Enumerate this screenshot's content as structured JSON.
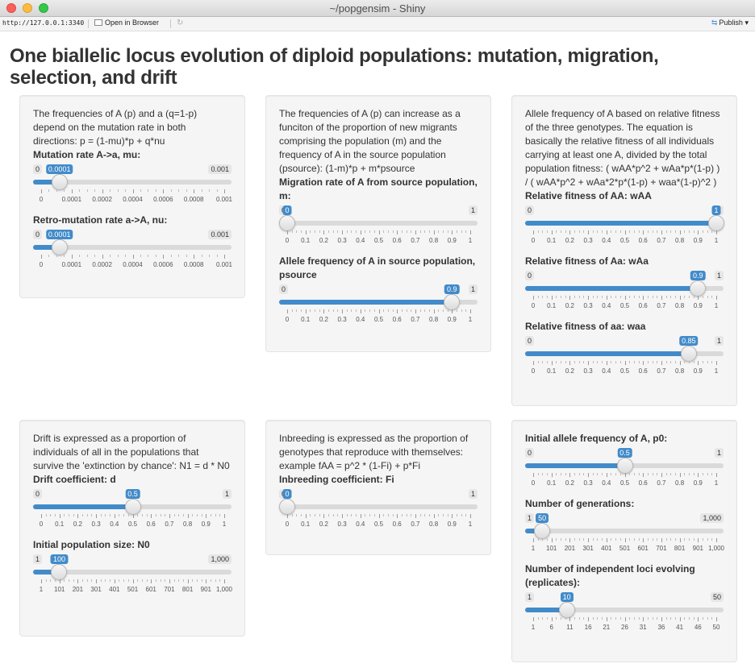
{
  "window": {
    "title": "~/popgensim - Shiny"
  },
  "toolbar": {
    "url": "http://127.0.0.1:3340",
    "open_in_browser": "Open in Browser",
    "publish": "Publish",
    "publish_caret": "▾",
    "refresh_icon": "↻",
    "publish_icon": "⇆"
  },
  "page": {
    "title": "One biallelic locus evolution of diploid populations: mutation, migration, selection, and drift"
  },
  "panels": [
    {
      "description": "The frequencies of A (p) and a (q=1-p) depend on the mutation rate in both directions: p = (1-mu)*p + q*nu",
      "sliders": [
        {
          "label": "Mutation rate A->a, mu:",
          "min": "0",
          "max": "0.001",
          "value": "0.0001",
          "fraction": 0.1,
          "grid": [
            "0",
            "0.0001",
            "0.0002",
            "0.0004",
            "0.0006",
            "0.0008",
            "0.001"
          ]
        },
        {
          "label": "Retro-mutation rate a->A, nu:",
          "min": "0",
          "max": "0.001",
          "value": "0.0001",
          "fraction": 0.1,
          "grid": [
            "0",
            "0.0001",
            "0.0002",
            "0.0004",
            "0.0006",
            "0.0008",
            "0.001"
          ]
        }
      ]
    },
    {
      "description": "The frequencies of A (p) can increase as a funciton of the proportion of new migrants comprising the population (m) and the frequency of A in the source population (psource): (1-m)*p + m*psource",
      "sliders": [
        {
          "label": "Migration rate of A from source population, m:",
          "min": "0",
          "max": "1",
          "value": "0",
          "fraction": 0,
          "grid": [
            "0",
            "0.1",
            "0.2",
            "0.3",
            "0.4",
            "0.5",
            "0.6",
            "0.7",
            "0.8",
            "0.9",
            "1"
          ]
        },
        {
          "label": "Allele frequency of A in source population, psource",
          "min": "0",
          "max": "1",
          "value": "0.9",
          "fraction": 0.9,
          "grid": [
            "0",
            "0.1",
            "0.2",
            "0.3",
            "0.4",
            "0.5",
            "0.6",
            "0.7",
            "0.8",
            "0.9",
            "1"
          ]
        }
      ]
    },
    {
      "description": "Allele frequency of A based on relative fitness of the three genotypes. The equation is basically the relative fitness of all individuals carrying at least one A, divided by the total population fitness: ( wAA*p^2 + wAa*p*(1-p) ) / ( wAA*p^2 + wAa*2*p*(1-p) + waa*(1-p)^2 )",
      "sliders": [
        {
          "label": "Relative fitness of AA: wAA",
          "min": "0",
          "max": "1",
          "value": "1",
          "fraction": 1,
          "grid": [
            "0",
            "0.1",
            "0.2",
            "0.3",
            "0.4",
            "0.5",
            "0.6",
            "0.7",
            "0.8",
            "0.9",
            "1"
          ]
        },
        {
          "label": "Relative fitness of Aa: wAa",
          "min": "0",
          "max": "1",
          "value": "0.9",
          "fraction": 0.9,
          "grid": [
            "0",
            "0.1",
            "0.2",
            "0.3",
            "0.4",
            "0.5",
            "0.6",
            "0.7",
            "0.8",
            "0.9",
            "1"
          ]
        },
        {
          "label": "Relative fitness of aa: waa",
          "min": "0",
          "max": "1",
          "value": "0.85",
          "fraction": 0.85,
          "grid": [
            "0",
            "0.1",
            "0.2",
            "0.3",
            "0.4",
            "0.5",
            "0.6",
            "0.7",
            "0.8",
            "0.9",
            "1"
          ]
        }
      ]
    },
    {
      "description": "Drift is expressed as a proportion of individuals of all in the populations that survive the 'extinction by chance': N1 = d * N0",
      "sliders": [
        {
          "label": "Drift coefficient: d",
          "min": "0",
          "max": "1",
          "value": "0.5",
          "fraction": 0.5,
          "grid": [
            "0",
            "0.1",
            "0.2",
            "0.3",
            "0.4",
            "0.5",
            "0.6",
            "0.7",
            "0.8",
            "0.9",
            "1"
          ]
        },
        {
          "label": "Initial population size: N0",
          "min": "1",
          "max": "1,000",
          "value": "100",
          "fraction": 0.0991,
          "grid": [
            "1",
            "101",
            "201",
            "301",
            "401",
            "501",
            "601",
            "701",
            "801",
            "901",
            "1,000"
          ]
        }
      ]
    },
    {
      "description": "Inbreeding is expressed as the proportion of genotypes that reproduce with themselves: example fAA = p^2 * (1-Fi) + p*Fi",
      "sliders": [
        {
          "label": "Inbreeding coefficient: Fi",
          "min": "0",
          "max": "1",
          "value": "0",
          "fraction": 0,
          "grid": [
            "0",
            "0.1",
            "0.2",
            "0.3",
            "0.4",
            "0.5",
            "0.6",
            "0.7",
            "0.8",
            "0.9",
            "1"
          ]
        }
      ]
    },
    {
      "description": "",
      "sliders": [
        {
          "label": "Initial allele frequency of A, p0:",
          "min": "0",
          "max": "1",
          "value": "0.5",
          "fraction": 0.5,
          "grid": [
            "0",
            "0.1",
            "0.2",
            "0.3",
            "0.4",
            "0.5",
            "0.6",
            "0.7",
            "0.8",
            "0.9",
            "1"
          ]
        },
        {
          "label": "Number of generations:",
          "min": "1",
          "max": "1,000",
          "value": "50",
          "fraction": 0.049,
          "grid": [
            "1",
            "101",
            "201",
            "301",
            "401",
            "501",
            "601",
            "701",
            "801",
            "901",
            "1,000"
          ]
        },
        {
          "label": "Number of independent loci evolving (replicates):",
          "min": "1",
          "max": "50",
          "value": "10",
          "fraction": 0.1837,
          "grid": [
            "1",
            "6",
            "11",
            "16",
            "21",
            "26",
            "31",
            "36",
            "41",
            "46",
            "50"
          ]
        }
      ]
    }
  ]
}
